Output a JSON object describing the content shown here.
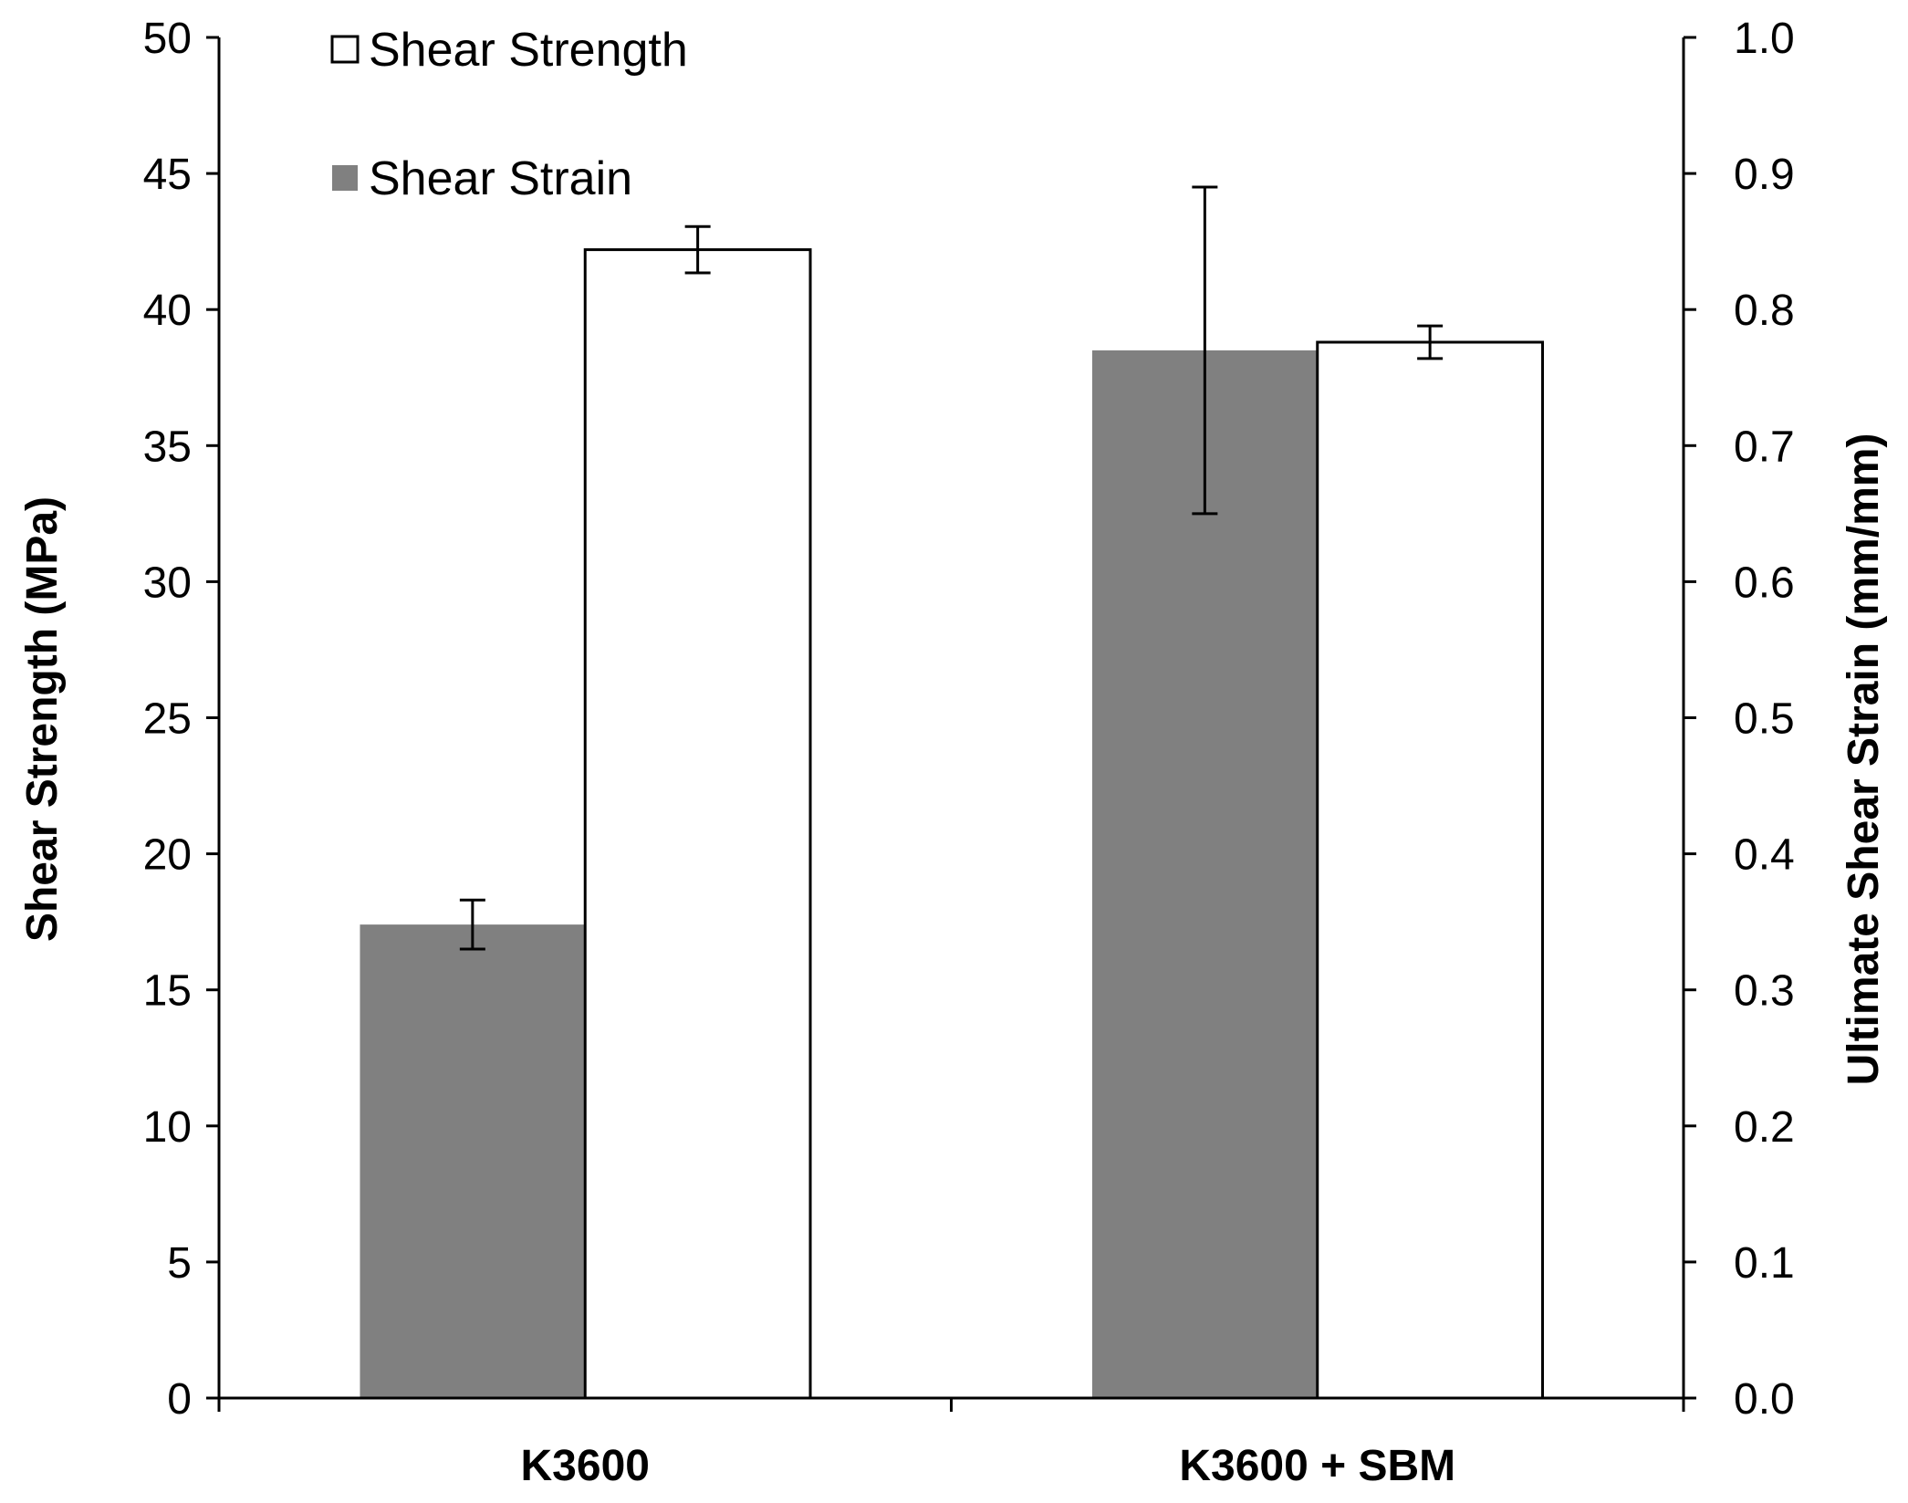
{
  "chart_data": {
    "type": "bar",
    "title": "",
    "categories": [
      "K3600",
      "K3600 + SBM"
    ],
    "series": [
      {
        "name": "Shear Strain",
        "axis": "right",
        "color": "#808080",
        "values": [
          0.348,
          0.77
        ],
        "errors": [
          0.018,
          0.12
        ]
      },
      {
        "name": "Shear Strength",
        "axis": "left",
        "color": "#ffffff",
        "values": [
          42.2,
          38.8
        ],
        "errors": [
          0.85,
          0.6
        ]
      }
    ],
    "left_axis": {
      "label": "Shear Strength (MPa)",
      "ylim": [
        0,
        50
      ],
      "ticks": [
        "0",
        "5",
        "10",
        "15",
        "20",
        "25",
        "30",
        "35",
        "40",
        "45",
        "50"
      ]
    },
    "right_axis": {
      "label": "Ultimate Shear Strain (mm/mm)",
      "ylim": [
        0,
        1
      ],
      "ticks": [
        "0.0",
        "0.1",
        "0.2",
        "0.3",
        "0.4",
        "0.5",
        "0.6",
        "0.7",
        "0.8",
        "0.9",
        "1.0"
      ]
    },
    "legend": {
      "position": "top-left",
      "entries": [
        "Shear Strength",
        "Shear Strain"
      ]
    },
    "grid": false
  }
}
